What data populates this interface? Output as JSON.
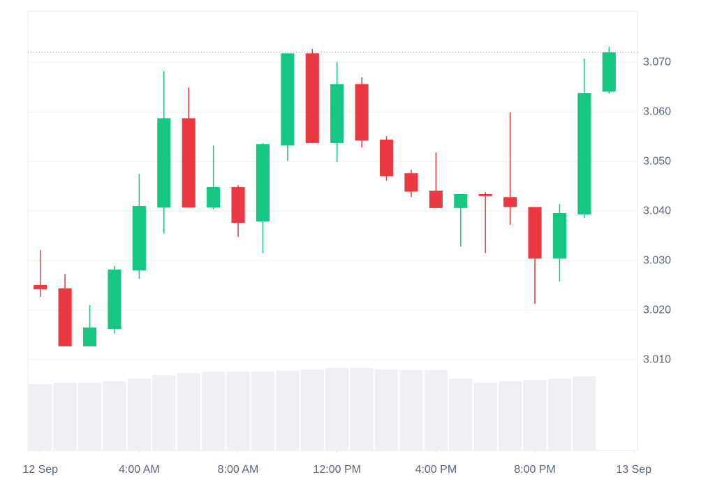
{
  "chart_data": {
    "type": "candlestick",
    "x": [
      0,
      1,
      2,
      3,
      4,
      5,
      6,
      7,
      8,
      9,
      10,
      11,
      12,
      13,
      14,
      15,
      16,
      17,
      18,
      19,
      20,
      21,
      22,
      23
    ],
    "open": [
      3.0251,
      3.0244,
      3.0127,
      3.0162,
      3.028,
      3.0407,
      3.0587,
      3.0407,
      3.0448,
      3.0379,
      3.0532,
      3.0718,
      3.0537,
      3.0656,
      3.0544,
      3.0476,
      3.0441,
      3.0406,
      3.0434,
      3.0428,
      3.0408,
      3.0304,
      3.0393,
      3.0641
    ],
    "high": [
      3.0321,
      3.0273,
      3.021,
      3.0289,
      3.0475,
      3.0682,
      3.0649,
      3.0532,
      3.0452,
      3.0537,
      3.0718,
      3.0727,
      3.0701,
      3.067,
      3.0551,
      3.0483,
      3.0518,
      3.0434,
      3.0438,
      3.0599,
      3.0408,
      3.0414,
      3.0707,
      3.0731
    ],
    "low": [
      3.0227,
      3.0127,
      3.0127,
      3.0153,
      3.0263,
      3.0355,
      3.0407,
      3.0403,
      3.0348,
      3.0315,
      3.0501,
      3.0537,
      3.0499,
      3.0528,
      3.0461,
      3.0428,
      3.0406,
      3.0328,
      3.0315,
      3.0372,
      3.0213,
      3.0258,
      3.0386,
      3.0637
    ],
    "close": [
      3.0242,
      3.0127,
      3.0165,
      3.0282,
      3.041,
      3.0587,
      3.0407,
      3.0448,
      3.0376,
      3.0535,
      3.0718,
      3.0537,
      3.0656,
      3.0542,
      3.047,
      3.0439,
      3.0406,
      3.0434,
      3.043,
      3.0408,
      3.0304,
      3.0396,
      3.0638,
      3.072
    ],
    "volume": [
      95,
      97,
      97,
      99,
      103,
      108,
      111,
      113,
      113,
      113,
      114,
      116,
      118,
      118,
      116,
      115,
      115,
      103,
      97,
      99,
      101,
      103,
      106,
      null
    ],
    "volume_lim": [
      0,
      629
    ],
    "up_color": "#16c784",
    "down_color": "#ea3943",
    "volume_color": "#eff0f3",
    "xlim": [
      -0.5,
      24.15
    ],
    "xticks": [
      {
        "value": 0,
        "label": "12 Sep"
      },
      {
        "value": 4,
        "label": "4:00 AM"
      },
      {
        "value": 8,
        "label": "8:00 AM"
      },
      {
        "value": 12,
        "label": "12:00 PM"
      },
      {
        "value": 16,
        "label": "4:00 PM"
      },
      {
        "value": 20,
        "label": "8:00 PM"
      },
      {
        "value": 24,
        "label": "13 Sep"
      }
    ],
    "ylim": [
      2.9917,
      3.0803
    ],
    "yticks": [
      {
        "value": 3.01,
        "label": "3.010"
      },
      {
        "value": 3.02,
        "label": "3.020"
      },
      {
        "value": 3.03,
        "label": "3.030"
      },
      {
        "value": 3.04,
        "label": "3.040"
      },
      {
        "value": 3.05,
        "label": "3.050"
      },
      {
        "value": 3.06,
        "label": "3.060"
      },
      {
        "value": 3.07,
        "label": "3.070"
      }
    ],
    "grid": true
  }
}
